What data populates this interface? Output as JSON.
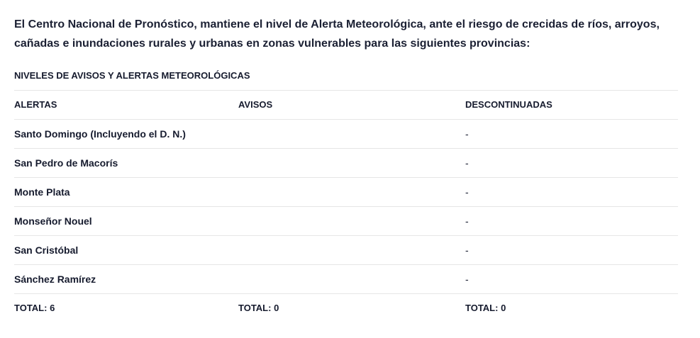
{
  "intro": "El Centro Nacional de Pronóstico, mantiene el nivel de Alerta Meteorológica, ante el riesgo de crecidas de ríos, arroyos, cañadas e inundaciones rurales y urbanas en zonas vulnerables para las siguientes provincias:",
  "table": {
    "caption": "NIVELES DE AVISOS Y ALERTAS METEOROLÓGICAS",
    "headers": [
      "ALERTAS",
      "AVISOS",
      "DESCONTINUADAS"
    ],
    "rows": [
      [
        "Santo Domingo (Incluyendo el D. N.)",
        "",
        "-"
      ],
      [
        "San Pedro de Macorís",
        "",
        "-"
      ],
      [
        "Monte Plata",
        "",
        "-"
      ],
      [
        "Monseñor Nouel",
        "",
        "-"
      ],
      [
        "San Cristóbal",
        "",
        "-"
      ],
      [
        "Sánchez Ramírez",
        "",
        "-"
      ]
    ],
    "totals": [
      "TOTAL: 6",
      "TOTAL: 0",
      "TOTAL: 0"
    ]
  }
}
